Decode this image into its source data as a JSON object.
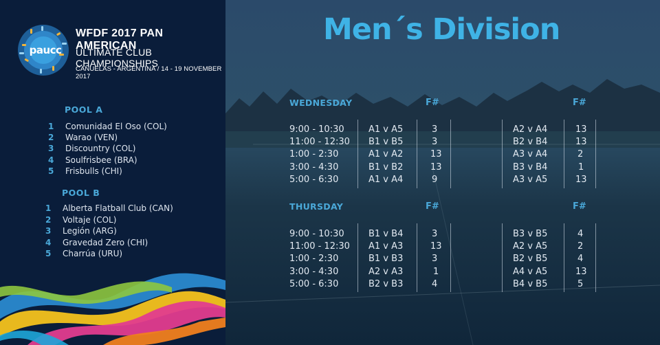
{
  "event": {
    "logo_text": "paucc",
    "title": "WFDF 2017 PAN AMERICAN",
    "subtitle": "ULTIMATE CLUB CHAMPIONSHIPS",
    "location": "CAÑUELAS - ARGENTINA  / 14 - 19 NOVEMBER 2017"
  },
  "pools": [
    {
      "title": "POOL A",
      "teams": [
        {
          "num": "1",
          "name": "Comunidad El Oso (COL)"
        },
        {
          "num": "2",
          "name": "Warao (VEN)"
        },
        {
          "num": "3",
          "name": "Discountry (COL)"
        },
        {
          "num": "4",
          "name": "Soulfrisbee (BRA)"
        },
        {
          "num": "5",
          "name": "Frisbulls (CHI)"
        }
      ]
    },
    {
      "title": "POOL B",
      "teams": [
        {
          "num": "1",
          "name": "Alberta Flatball Club (CAN)"
        },
        {
          "num": "2",
          "name": "Voltaje (COL)"
        },
        {
          "num": "3",
          "name": "Legión (ARG)"
        },
        {
          "num": "4",
          "name": "Gravedad Zero (CHI)"
        },
        {
          "num": "5",
          "name": "Charrúa (URU)"
        }
      ]
    }
  ],
  "division_title": "Men´s Division",
  "field_header": "F#",
  "schedule": [
    {
      "day": "WEDNESDAY",
      "rows": [
        {
          "time": "9:00  -  10:30",
          "m1": "A1  v  A5",
          "f1": "3",
          "m2": "A2  v  A4",
          "f2": "13"
        },
        {
          "time": "11:00  -  12:30",
          "m1": "B1  v  B5",
          "f1": "3",
          "m2": "B2  v  B4",
          "f2": "13"
        },
        {
          "time": "1:00  -  2:30",
          "m1": "A1  v  A2",
          "f1": "13",
          "m2": "A3  v  A4",
          "f2": "2"
        },
        {
          "time": "3:00  -  4:30",
          "m1": "B1  v  B2",
          "f1": "13",
          "m2": "B3  v  B4",
          "f2": "1"
        },
        {
          "time": "5:00  -  6:30",
          "m1": "A1  v  A4",
          "f1": "9",
          "m2": "A3  v  A5",
          "f2": "13"
        }
      ]
    },
    {
      "day": "THURSDAY",
      "rows": [
        {
          "time": "9:00  -  10:30",
          "m1": "B1  v  B4",
          "f1": "3",
          "m2": "B3  v  B5",
          "f2": "4"
        },
        {
          "time": "11:00  -  12:30",
          "m1": "A1  v  A3",
          "f1": "13",
          "m2": "A2  v  A5",
          "f2": "2"
        },
        {
          "time": "1:00  -  2:30",
          "m1": "B1  v  B3",
          "f1": "3",
          "m2": "B2  v  B5",
          "f2": "4"
        },
        {
          "time": "3:00  -  4:30",
          "m1": "A2  v  A3",
          "f1": "1",
          "m2": "A4  v  A5",
          "f2": "13"
        },
        {
          "time": "5:00  -  6:30",
          "m1": "B2  v  B3",
          "f1": "4",
          "m2": "B4  v  B5",
          "f2": "5"
        }
      ]
    }
  ]
}
